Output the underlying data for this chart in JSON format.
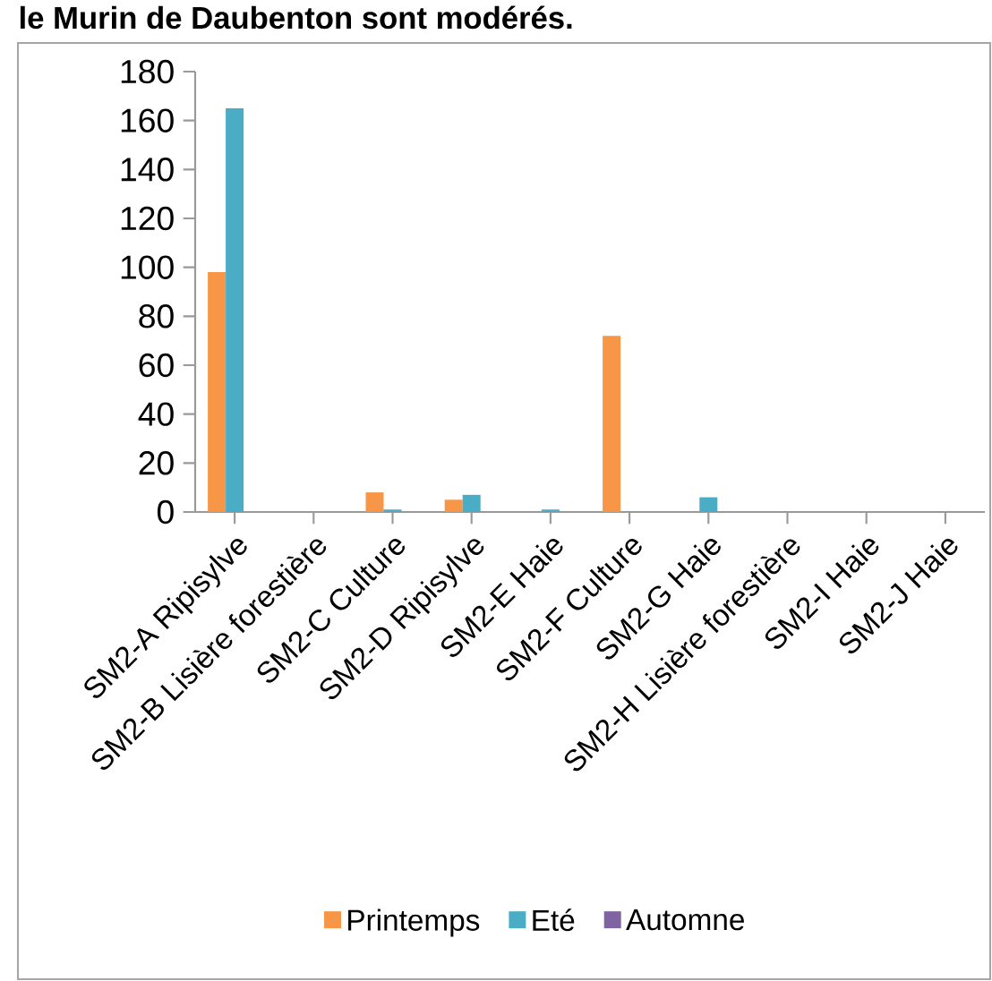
{
  "chart_data": {
    "type": "bar",
    "title": "le Murin de Daubenton sont modérés.",
    "categories": [
      "SM2-A Ripisylve",
      "SM2-B Lisière forestière",
      "SM2-C Culture",
      "SM2-D Ripisylve",
      "SM2-E Haie",
      "SM2-F Culture",
      "SM2-G Haie",
      "SM2-H Lisière forestière",
      "SM2-I Haie",
      "SM2-J Haie"
    ],
    "series": [
      {
        "name": "Printemps",
        "color": "#f79646",
        "values": [
          98,
          0,
          8,
          5,
          0,
          72,
          0,
          0,
          0,
          0
        ]
      },
      {
        "name": "Eté",
        "color": "#4bacc6",
        "values": [
          165,
          0,
          1,
          7,
          1,
          0,
          6,
          0,
          0,
          0
        ]
      },
      {
        "name": "Automne",
        "color": "#8064a2",
        "values": [
          0,
          0,
          0,
          0,
          0,
          0,
          0,
          0,
          0,
          0
        ]
      }
    ],
    "ylim": [
      0,
      180
    ],
    "yticks": [
      0,
      20,
      40,
      60,
      80,
      100,
      120,
      140,
      160,
      180
    ],
    "grid": false,
    "legend": "bottom"
  }
}
